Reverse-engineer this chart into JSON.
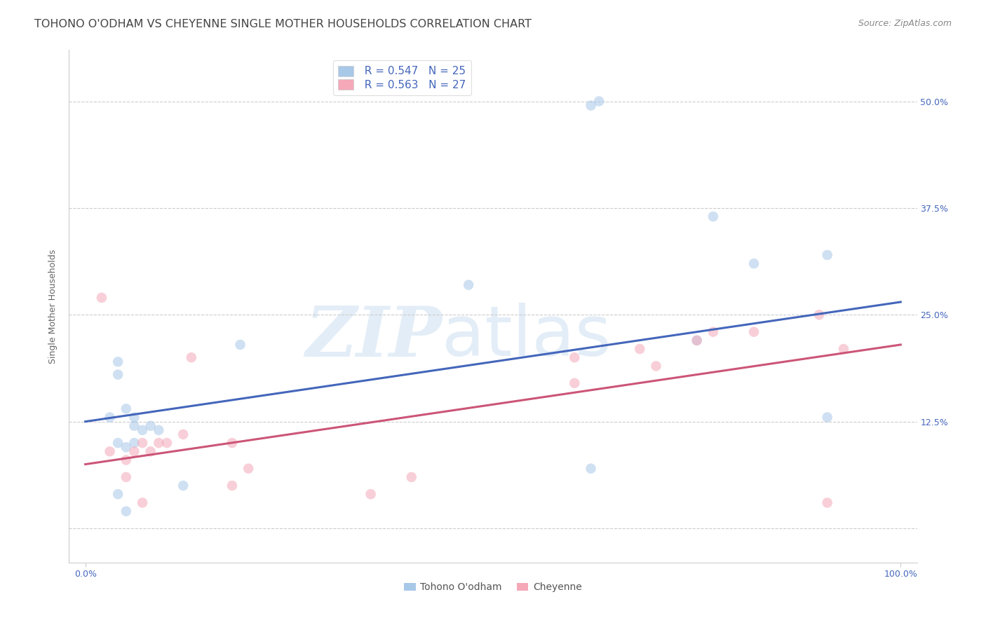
{
  "title": "TOHONO O'ODHAM VS CHEYENNE SINGLE MOTHER HOUSEHOLDS CORRELATION CHART",
  "source": "Source: ZipAtlas.com",
  "ylabel": "Single Mother Households",
  "xlim": [
    -0.02,
    1.02
  ],
  "ylim": [
    -0.04,
    0.56
  ],
  "xticks": [
    0.0,
    1.0
  ],
  "xticklabels": [
    "0.0%",
    "100.0%"
  ],
  "yticks": [
    0.0,
    0.125,
    0.25,
    0.375,
    0.5
  ],
  "yticklabels": [
    "",
    "12.5%",
    "25.0%",
    "37.5%",
    "50.0%"
  ],
  "blue_R": "R = 0.547",
  "blue_N": "N = 25",
  "pink_R": "R = 0.563",
  "pink_N": "N = 27",
  "blue_color": "#a8c8e8",
  "pink_color": "#f4a8b8",
  "blue_line_color": "#4466bb",
  "pink_line_color": "#cc5577",
  "legend_label_blue": "Tohono O'odham",
  "legend_label_pink": "Cheyenne",
  "blue_scatter_x": [
    0.62,
    0.77,
    0.82,
    0.91,
    0.04,
    0.04,
    0.05,
    0.03,
    0.06,
    0.06,
    0.07,
    0.08,
    0.09,
    0.04,
    0.05,
    0.06,
    0.19,
    0.47,
    0.62,
    0.75,
    0.91,
    0.12,
    0.63,
    0.04,
    0.05
  ],
  "blue_scatter_y": [
    0.495,
    0.365,
    0.31,
    0.13,
    0.195,
    0.18,
    0.14,
    0.13,
    0.13,
    0.12,
    0.115,
    0.12,
    0.115,
    0.1,
    0.095,
    0.1,
    0.215,
    0.285,
    0.07,
    0.22,
    0.32,
    0.05,
    0.5,
    0.04,
    0.02
  ],
  "pink_scatter_x": [
    0.02,
    0.07,
    0.09,
    0.03,
    0.05,
    0.06,
    0.08,
    0.1,
    0.12,
    0.13,
    0.18,
    0.18,
    0.2,
    0.35,
    0.4,
    0.6,
    0.6,
    0.68,
    0.7,
    0.75,
    0.77,
    0.82,
    0.9,
    0.91,
    0.93,
    0.05,
    0.07
  ],
  "pink_scatter_y": [
    0.27,
    0.1,
    0.1,
    0.09,
    0.08,
    0.09,
    0.09,
    0.1,
    0.11,
    0.2,
    0.1,
    0.05,
    0.07,
    0.04,
    0.06,
    0.2,
    0.17,
    0.21,
    0.19,
    0.22,
    0.23,
    0.23,
    0.25,
    0.03,
    0.21,
    0.06,
    0.03
  ],
  "blue_line_x": [
    0.0,
    1.0
  ],
  "blue_line_y": [
    0.125,
    0.265
  ],
  "pink_line_x": [
    0.0,
    1.0
  ],
  "pink_line_y": [
    0.075,
    0.215
  ],
  "watermark_zip": "ZIP",
  "watermark_atlas": "atlas",
  "background_color": "#ffffff",
  "grid_color": "#cccccc",
  "title_color": "#444444",
  "source_color": "#888888",
  "tick_color": "#4466bb",
  "ylabel_color": "#666666",
  "title_fontsize": 11.5,
  "source_fontsize": 9,
  "axis_tick_fontsize": 9,
  "marker_size": 110,
  "marker_alpha": 0.55,
  "line_width": 2.2,
  "legend_fontsize": 11
}
